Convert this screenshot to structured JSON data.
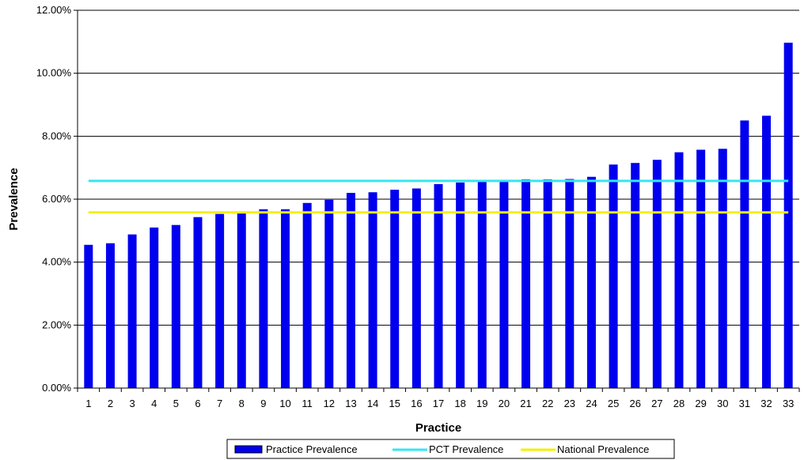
{
  "chart_data": {
    "type": "bar",
    "xlabel": "Practice",
    "ylabel": "Prevalence",
    "ylim": [
      0,
      0.12
    ],
    "yticks": [
      "0.00%",
      "2.00%",
      "4.00%",
      "6.00%",
      "8.00%",
      "10.00%",
      "12.00%"
    ],
    "categories": [
      "1",
      "2",
      "3",
      "4",
      "5",
      "6",
      "7",
      "8",
      "9",
      "10",
      "11",
      "12",
      "13",
      "14",
      "15",
      "16",
      "17",
      "18",
      "19",
      "20",
      "21",
      "22",
      "23",
      "24",
      "25",
      "26",
      "27",
      "28",
      "29",
      "30",
      "31",
      "32",
      "33"
    ],
    "series": [
      {
        "name": "Practice Prevalence",
        "kind": "bar",
        "color": "#0000ee",
        "values": [
          0.0455,
          0.046,
          0.0488,
          0.051,
          0.0518,
          0.0543,
          0.0553,
          0.0556,
          0.0568,
          0.0568,
          0.0588,
          0.0598,
          0.062,
          0.0622,
          0.063,
          0.0634,
          0.0648,
          0.0653,
          0.0655,
          0.0656,
          0.0663,
          0.0663,
          0.0664,
          0.0671,
          0.071,
          0.0715,
          0.0725,
          0.0749,
          0.0757,
          0.076,
          0.085,
          0.0865,
          0.1097
        ]
      },
      {
        "name": "PCT Prevalence",
        "kind": "line",
        "color": "#33e6f2",
        "value": 0.0658
      },
      {
        "name": "National Prevalence",
        "kind": "line",
        "color": "#f5f000",
        "value": 0.0558
      }
    ],
    "grid": true,
    "legend_position": "bottom"
  }
}
